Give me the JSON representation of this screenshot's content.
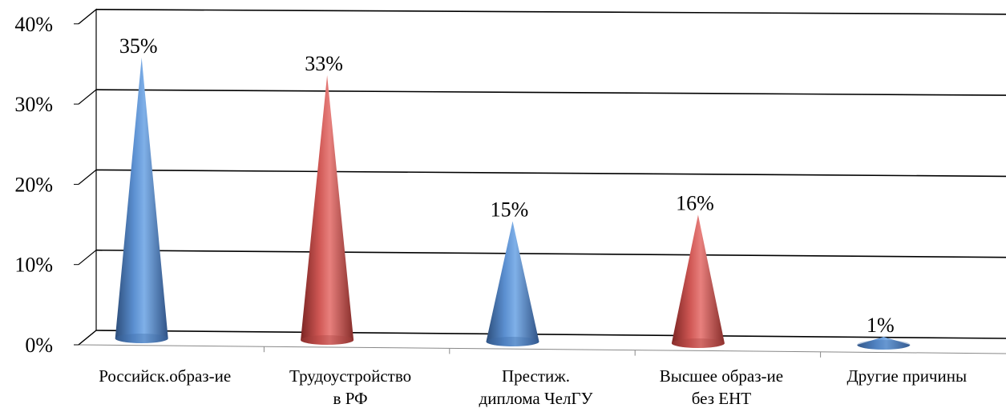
{
  "chart_data": {
    "type": "bar",
    "bar_shape": "cone",
    "view": "3d",
    "categories": [
      [
        "Российск.образ-ие"
      ],
      [
        "Трудоустройство",
        "в РФ"
      ],
      [
        "Престиж.",
        "диплома ЧелГУ"
      ],
      [
        "Высшее образ-ие",
        "без ЕНТ"
      ],
      [
        "Другие причины"
      ]
    ],
    "values": [
      35,
      33,
      15,
      16,
      1
    ],
    "data_labels": [
      "35%",
      "33%",
      "15%",
      "16%",
      "1%"
    ],
    "bar_colors": [
      "#4f81bd",
      "#c0504d",
      "#4f81bd",
      "#c0504d",
      "#4f81bd"
    ],
    "y_ticks": [
      "0%",
      "10%",
      "20%",
      "30%",
      "40%"
    ],
    "ylim": [
      0,
      40
    ],
    "grid": true,
    "legend": "none"
  }
}
